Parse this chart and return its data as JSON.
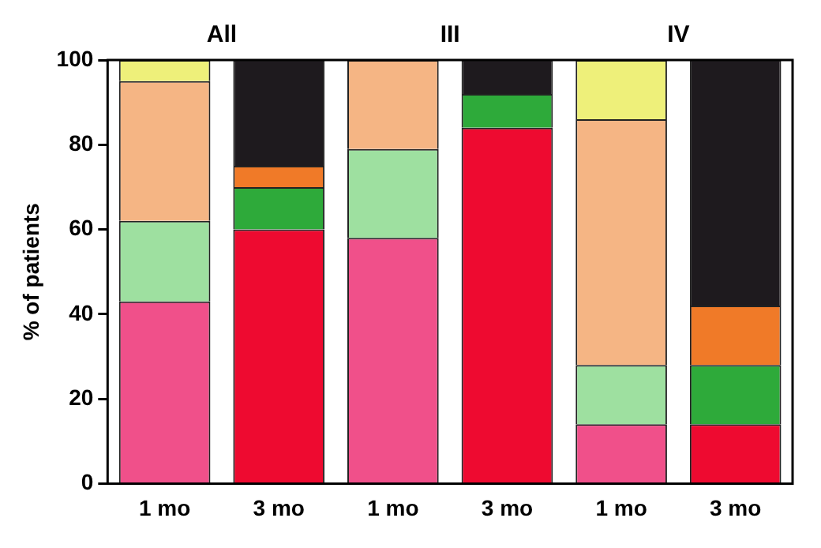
{
  "chart_data": {
    "type": "bar",
    "stacked": true,
    "ylabel": "% of patients",
    "categories": [
      "1 mo",
      "3 mo",
      "1 mo",
      "3 mo",
      "1 mo",
      "3 mo"
    ],
    "annotations": [
      "All",
      "III",
      "IV"
    ],
    "ylim": [
      0,
      100
    ],
    "yticks": [
      0,
      20,
      40,
      60,
      80,
      100
    ],
    "grid": false,
    "legend": false,
    "series": [
      {
        "color": "#f0508a",
        "values": [
          43,
          null,
          58,
          null,
          14,
          null
        ]
      },
      {
        "color": "#9ee0a0",
        "values": [
          19,
          null,
          21,
          null,
          14,
          null
        ]
      },
      {
        "color": "#f5b584",
        "values": [
          33,
          null,
          21,
          null,
          58,
          null
        ]
      },
      {
        "color": "#eef07a",
        "values": [
          5,
          null,
          null,
          null,
          14,
          null
        ]
      },
      {
        "color": "#ee0a30",
        "values": [
          null,
          60,
          null,
          84,
          null,
          14
        ]
      },
      {
        "color": "#2eaa3a",
        "values": [
          null,
          10,
          null,
          8,
          null,
          14
        ]
      },
      {
        "color": "#f07a28",
        "values": [
          null,
          5,
          null,
          null,
          null,
          14
        ]
      },
      {
        "color": "#1e1a1e",
        "values": [
          null,
          25,
          null,
          8,
          null,
          58
        ]
      }
    ]
  }
}
